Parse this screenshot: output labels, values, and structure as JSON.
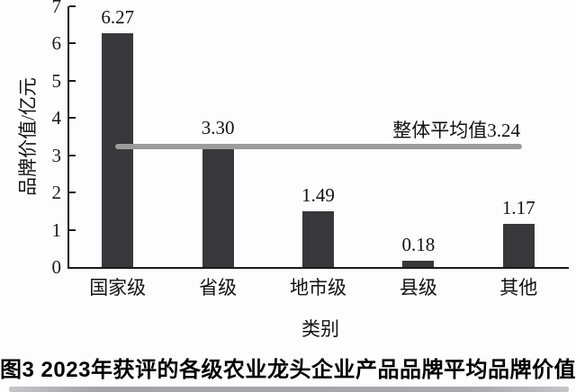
{
  "chart_data": {
    "type": "bar",
    "title": "",
    "categories": [
      "国家级",
      "省级",
      "地市级",
      "县级",
      "其他"
    ],
    "values": [
      6.27,
      3.3,
      1.49,
      0.18,
      1.17
    ],
    "value_labels": [
      "6.27",
      "3.30",
      "1.49",
      "0.18",
      "1.17"
    ],
    "xlabel": "类别",
    "ylabel": "品牌价值/亿元",
    "ylim": [
      0,
      7
    ],
    "yticks": [
      0,
      1,
      2,
      3,
      4,
      5,
      6,
      7
    ],
    "grid": false,
    "legend_position": "none",
    "bar_color": "#38383c",
    "axis_color": "#1a1a1a",
    "average_line": {
      "value": 3.24,
      "label": "整体平均值3.24",
      "color": "#9b9b9b"
    }
  },
  "caption": "图3 2023年获评的各级农业龙头企业产品品牌平均品牌价值"
}
